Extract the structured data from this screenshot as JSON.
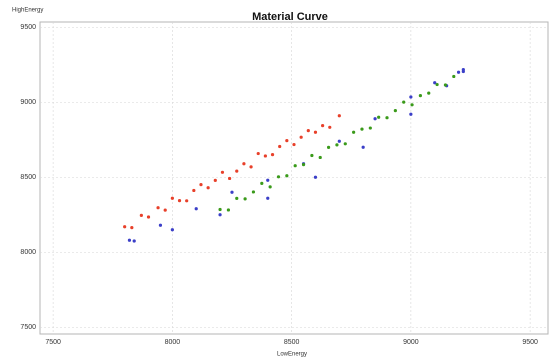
{
  "chart_data": {
    "type": "scatter",
    "title": "Material Curve",
    "x_label": "LowEnergy",
    "y_label": "HighEnergy",
    "xlim": [
      7445,
      9575
    ],
    "ylim": [
      7455,
      9535
    ],
    "xticks": [
      7500,
      8000,
      8500,
      9000,
      9500
    ],
    "yticks": [
      7500,
      8000,
      8500,
      9000,
      9500
    ],
    "grid": true,
    "series": [
      {
        "color": "#e8402a",
        "x": [
          7800,
          7830,
          7870,
          7900,
          7940,
          7970,
          8000,
          8030,
          8060,
          8090,
          8120,
          8150,
          8180,
          8210,
          8240,
          8270,
          8300,
          8330,
          8360,
          8390,
          8420,
          8450,
          8480,
          8510,
          8540,
          8570,
          8600,
          8630,
          8660,
          8700
        ],
        "y": [
          8170,
          8164,
          8246,
          8235,
          8297,
          8281,
          8360,
          8344,
          8343,
          8412,
          8451,
          8430,
          8479,
          8533,
          8492,
          8541,
          8590,
          8569,
          8658,
          8642,
          8651,
          8705,
          8744,
          8718,
          8767,
          8811,
          8800,
          8844,
          8833,
          8910
        ]
      },
      {
        "color": "#3b3fc8",
        "x": [
          7820,
          7950,
          8100,
          8250,
          8400,
          8550,
          8700,
          8850,
          9000,
          9100,
          9200,
          9220
        ],
        "y": [
          8080,
          8180,
          8290,
          8400,
          8480,
          8590,
          8740,
          8890,
          9035,
          9130,
          9200,
          9218
        ]
      },
      {
        "color": "#3b3fc8",
        "x": [
          7840,
          8000,
          8200,
          8400,
          8600,
          8800,
          9000,
          9150,
          9220
        ],
        "y": [
          8075,
          8150,
          8250,
          8360,
          8500,
          8700,
          8920,
          9110,
          9205
        ]
      },
      {
        "color": "#3a9a1a",
        "x": [
          8200,
          8235,
          8270,
          8305,
          8340,
          8375,
          8410,
          8445,
          8480,
          8515,
          8550,
          8585,
          8620,
          8655,
          8690,
          8725,
          8760,
          8795,
          8830,
          8865,
          8900,
          8935,
          8970,
          9005,
          9040,
          9075,
          9110,
          9145,
          9180
        ],
        "y": [
          8285,
          8282,
          8359,
          8356,
          8402,
          8459,
          8436,
          8503,
          8510,
          8577,
          8584,
          8645,
          8632,
          8699,
          8716,
          8723,
          8800,
          8821,
          8828,
          8900,
          8897,
          8944,
          9001,
          8983,
          9044,
          9061,
          9118,
          9115,
          9172
        ]
      }
    ]
  }
}
